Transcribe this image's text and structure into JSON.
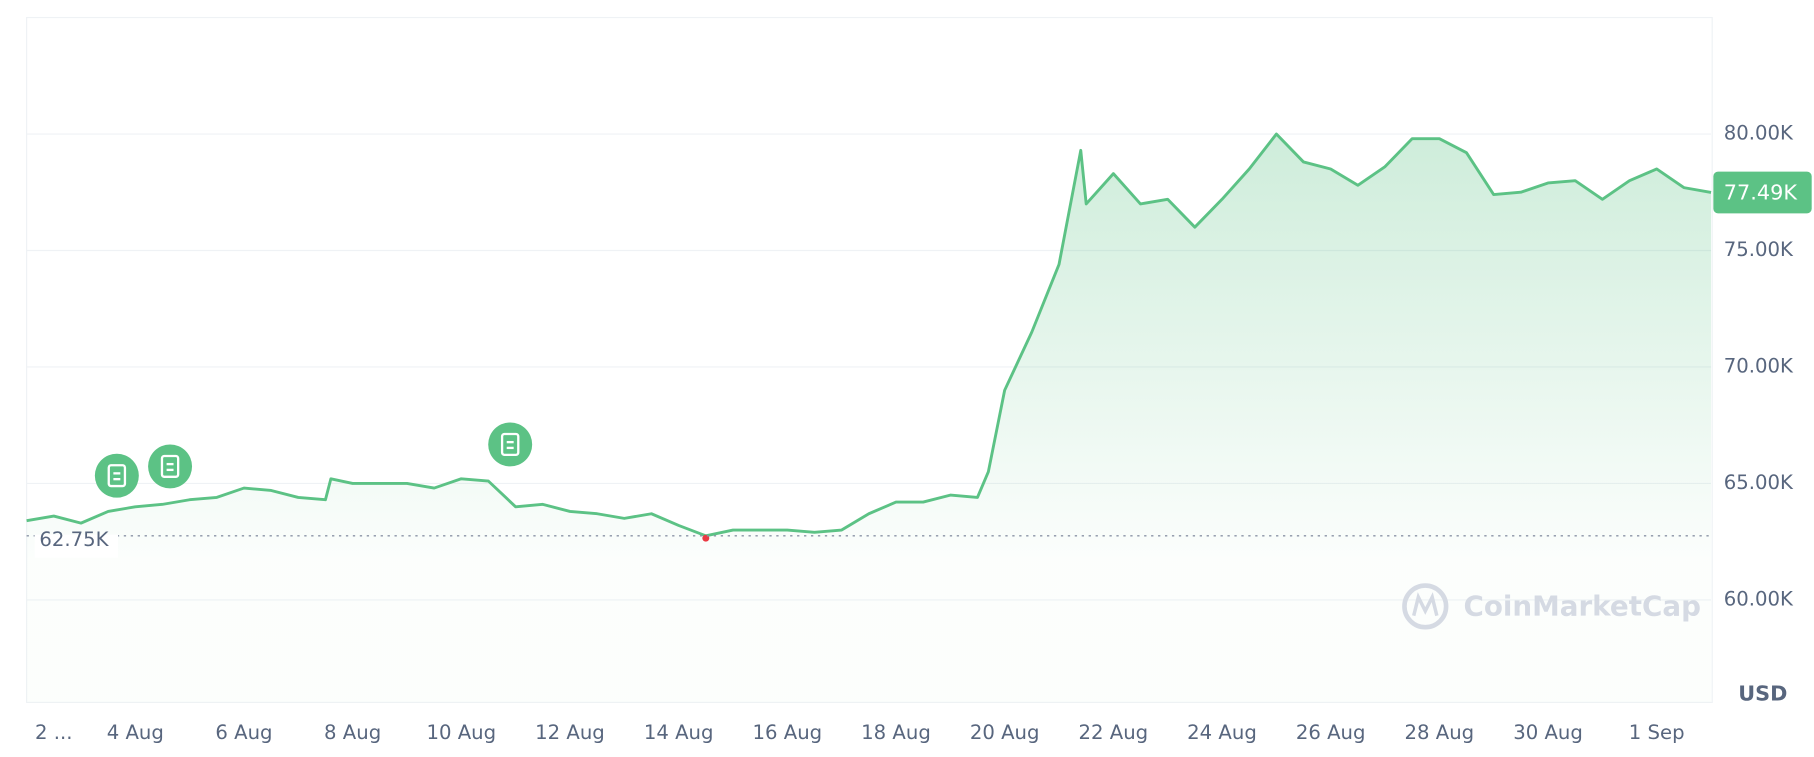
{
  "chart_data": {
    "type": "line",
    "color": "#5cc285",
    "x": [
      0,
      0.5,
      1,
      1.5,
      2,
      2.5,
      3,
      3.5,
      4,
      4.5,
      5,
      5.5,
      5.6,
      6,
      6.5,
      7,
      7.5,
      8,
      8.5,
      9,
      9.5,
      10,
      10.5,
      11,
      11.5,
      12,
      12.5,
      13,
      13.5,
      14,
      14.5,
      15,
      15.5,
      16,
      16.5,
      17,
      17.5,
      17.7,
      18,
      18.5,
      19,
      19.4,
      19.5,
      20,
      20.5,
      21,
      21.5,
      22,
      22.5,
      23,
      23.5,
      24,
      24.5,
      25,
      25.5,
      26,
      26.5,
      27,
      27.5,
      28,
      28.5,
      29,
      29.5,
      30,
      30.5,
      31
    ],
    "values": [
      63400,
      63600,
      63300,
      63800,
      64000,
      64100,
      64300,
      64400,
      64800,
      64700,
      64400,
      64300,
      65200,
      65000,
      65000,
      65000,
      64800,
      65200,
      65100,
      64000,
      64100,
      63800,
      63700,
      63500,
      63700,
      63200,
      62750,
      63000,
      63000,
      63000,
      62900,
      63000,
      63700,
      64200,
      64200,
      64500,
      64400,
      65500,
      69000,
      71500,
      74400,
      79300,
      77000,
      78300,
      77000,
      77200,
      76000,
      77200,
      78500,
      80000,
      78800,
      78500,
      77800,
      78600,
      79800,
      79800,
      79200,
      77400,
      77500,
      77900,
      78000,
      77200,
      78000,
      78500,
      77700,
      77490
    ],
    "xlim": [
      0,
      31
    ],
    "xticks": [
      {
        "value": 0.5,
        "label": "2 ..."
      },
      {
        "value": 2,
        "label": "4 Aug"
      },
      {
        "value": 4,
        "label": "6 Aug"
      },
      {
        "value": 6,
        "label": "8 Aug"
      },
      {
        "value": 8,
        "label": "10 Aug"
      },
      {
        "value": 10,
        "label": "12 Aug"
      },
      {
        "value": 12,
        "label": "14 Aug"
      },
      {
        "value": 14,
        "label": "16 Aug"
      },
      {
        "value": 16,
        "label": "18 Aug"
      },
      {
        "value": 18,
        "label": "20 Aug"
      },
      {
        "value": 20,
        "label": "22 Aug"
      },
      {
        "value": 22,
        "label": "24 Aug"
      },
      {
        "value": 24,
        "label": "26 Aug"
      },
      {
        "value": 26,
        "label": "28 Aug"
      },
      {
        "value": 28,
        "label": "30 Aug"
      },
      {
        "value": 30,
        "label": "1 Sep"
      }
    ],
    "ylim": [
      55600,
      85000
    ],
    "yticks": [
      {
        "value": 60000,
        "label": "60.00K"
      },
      {
        "value": 65000,
        "label": "65.00K"
      },
      {
        "value": 70000,
        "label": "70.00K"
      },
      {
        "value": 75000,
        "label": "75.00K"
      },
      {
        "value": 80000,
        "label": "80.00K"
      }
    ],
    "grid": true,
    "reference": {
      "value": 62750,
      "label": "62.75K"
    },
    "last_price": {
      "value": 77490,
      "label": "77.49K"
    },
    "currency": "USD",
    "watermark": "CoinMarketCap"
  }
}
